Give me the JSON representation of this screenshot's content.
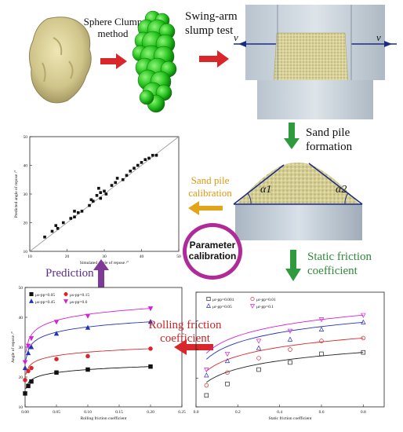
{
  "top_row": {
    "method_label_line1": "Sphere Clump",
    "method_label_line2": "method",
    "swing_label": "Swing-arm",
    "slump_label": "slump test",
    "v_left": "v",
    "v_right": "v"
  },
  "flow_labels": {
    "sand_pile_formation_1": "Sand pile",
    "sand_pile_formation_2": "formation",
    "sand_pile_calibration_1": "Sand pile",
    "sand_pile_calibration_2": "calibration",
    "alpha1": "α1",
    "alpha2": "α2",
    "static_friction_1": "Static friction",
    "static_friction_2": "coefficient",
    "rolling_friction_1": "Rolling friction",
    "rolling_friction_2": "coefficient",
    "prediction": "Prediction",
    "parameter_calibration_1": "Parameter",
    "parameter_calibration_2": "calibration"
  },
  "colors": {
    "red_arrow": "#d9262a",
    "green_arrow": "#2f9a3e",
    "gold_arrow": "#e2a51a",
    "purple": "#7d3a97",
    "magenta_ring": "#b02a9a",
    "gold_text": "#d79a12",
    "green_text": "#2f8a3a",
    "red_text": "#c8252a",
    "purple_text": "#5b2d8e"
  },
  "chart_data": [
    {
      "type": "scatter",
      "xlabel": "Simulated angle of repose /°",
      "ylabel": "Predicted angle of repose /°",
      "xlim": [
        10,
        50
      ],
      "ylim": [
        10,
        50
      ],
      "xticks": [
        "10",
        "20",
        "30",
        "40",
        "50"
      ],
      "yticks": [
        "10",
        "20",
        "30",
        "40",
        "50"
      ],
      "reference_line": [
        [
          10,
          10
        ],
        [
          50,
          50
        ]
      ],
      "points": [
        [
          14,
          15
        ],
        [
          16,
          17
        ],
        [
          17,
          19
        ],
        [
          17.5,
          18
        ],
        [
          19,
          20
        ],
        [
          21,
          21.5
        ],
        [
          22,
          22
        ],
        [
          22,
          24
        ],
        [
          23,
          23.5
        ],
        [
          24,
          24
        ],
        [
          26,
          26
        ],
        [
          26.5,
          28
        ],
        [
          27,
          27.5
        ],
        [
          28,
          29.5
        ],
        [
          28.5,
          32
        ],
        [
          29,
          30.5
        ],
        [
          29,
          28.5
        ],
        [
          30,
          31
        ],
        [
          30.5,
          30
        ],
        [
          32,
          33
        ],
        [
          33,
          34
        ],
        [
          33.5,
          35.5
        ],
        [
          35,
          35
        ],
        [
          36,
          36.5
        ],
        [
          37,
          38
        ],
        [
          38,
          39
        ],
        [
          39,
          40
        ],
        [
          40,
          41
        ],
        [
          41,
          42
        ],
        [
          42,
          42.5
        ],
        [
          43,
          43.5
        ],
        [
          44,
          43.5
        ]
      ]
    },
    {
      "type": "scatter",
      "xlabel": "Rolling friction coefficient",
      "ylabel": "Angle of repose /°",
      "xlim": [
        0.0,
        0.25
      ],
      "ylim": [
        10,
        50
      ],
      "xticks": [
        "0.00",
        "0.05",
        "0.10",
        "0.15",
        "0.20",
        "0.25"
      ],
      "yticks": [
        "10",
        "20",
        "30",
        "40",
        "50"
      ],
      "legend": "top-left",
      "series": [
        {
          "name": "μs-pp=0.05",
          "marker": "square",
          "color": "#111111",
          "x": [
            0.0,
            0.005,
            0.01,
            0.05,
            0.1,
            0.2
          ],
          "y": [
            14.5,
            17,
            18.5,
            21.5,
            22.5,
            23.5
          ]
        },
        {
          "name": "μs-pp=0.15",
          "marker": "circle",
          "color": "#d9262a",
          "x": [
            0.0,
            0.005,
            0.01,
            0.05,
            0.1,
            0.2
          ],
          "y": [
            19,
            22,
            23,
            26,
            27,
            29.5
          ]
        },
        {
          "name": "μs-pp=0.45",
          "marker": "triangle",
          "color": "#2233bb",
          "x": [
            0.0,
            0.005,
            0.01,
            0.05,
            0.1,
            0.2
          ],
          "y": [
            23,
            28,
            30,
            34.5,
            36.5,
            38.5
          ]
        },
        {
          "name": "μs-pp=0.6",
          "marker": "tri-down",
          "color": "#d61fd6",
          "x": [
            0.0,
            0.005,
            0.01,
            0.05,
            0.1,
            0.2
          ],
          "y": [
            25,
            30.5,
            33,
            38.5,
            40.5,
            43
          ]
        }
      ]
    },
    {
      "type": "scatter",
      "xlabel": "Static friction coefficient",
      "ylabel": "Angle of repose /°",
      "xlim": [
        0.0,
        0.9
      ],
      "ylim": [
        10,
        50
      ],
      "xticks": [
        "0.0",
        "0.2",
        "0.4",
        "0.6",
        "0.8"
      ],
      "yticks": [],
      "legend": "top-left",
      "series": [
        {
          "name": "μr-pp=0.001",
          "marker": "square-open",
          "color": "#222222",
          "x": [
            0.05,
            0.15,
            0.3,
            0.45,
            0.6,
            0.8
          ],
          "y": [
            14,
            18,
            23,
            25.5,
            28.5,
            29
          ]
        },
        {
          "name": "μr-pp=0.01",
          "marker": "circle-open",
          "color": "#d9262a",
          "x": [
            0.05,
            0.15,
            0.3,
            0.45,
            0.6,
            0.8
          ],
          "y": [
            17.5,
            22,
            27,
            30,
            33,
            34
          ]
        },
        {
          "name": "μr-pp=0.05",
          "marker": "triangle-open",
          "color": "#2233bb",
          "x": [
            0.05,
            0.15,
            0.3,
            0.45,
            0.6,
            0.8
          ],
          "y": [
            21,
            26,
            30.5,
            33.5,
            37,
            39.5
          ]
        },
        {
          "name": "μr-pp=0.1",
          "marker": "tri-down-open",
          "color": "#d61fd6",
          "x": [
            0.05,
            0.15,
            0.3,
            0.45,
            0.6,
            0.8
          ],
          "y": [
            23,
            28.5,
            33,
            36.5,
            40.5,
            42
          ]
        }
      ]
    }
  ]
}
